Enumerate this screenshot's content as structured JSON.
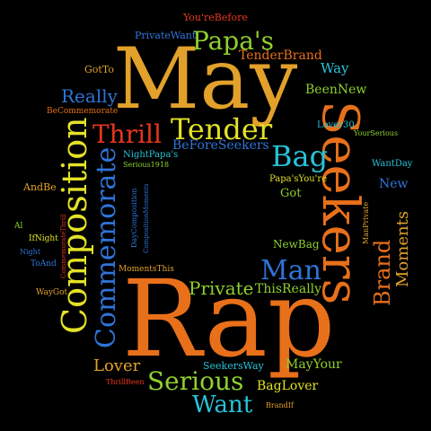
{
  "colors": {
    "background": "#000000",
    "orange": "#e8701a",
    "amber": "#e2a12a",
    "green": "#8fd12d",
    "cyan": "#27c3d8",
    "blue": "#2f74d8",
    "red": "#e8361e",
    "yellow": "#e3e227",
    "darkorange": "#c8501a"
  },
  "words": {
    "may": "May",
    "rap": "Rap",
    "seekers": "Seekers",
    "composition": "Composition",
    "commemorate": "Commemorate",
    "papas": "Papa's",
    "tender": "Tender",
    "thrill": "Thrill",
    "bag": "Bag",
    "man": "Man",
    "serious": "Serious",
    "want": "Want",
    "private": "Private",
    "lover": "Lover",
    "brand": "Brand",
    "moments": "Moments",
    "really": "Really",
    "way": "Way",
    "beennew": "BeenNew",
    "tenderbrand": "TenderBrand",
    "privatewant": "PrivateWant",
    "yourebefore": "You'reBefore",
    "gotto": "GotTo",
    "becommemorate": "BeCommemorate",
    "beforeseekers": "BeForeSeekers",
    "nightpapas": "NightPapa's",
    "serious1918": "Serious1918",
    "lover30": "Lover30",
    "yourserious": "YourSerious",
    "wantday": "WantDay",
    "papasyoure": "Papa'sYou're",
    "got": "Got",
    "new": "New",
    "andbe": "AndBe",
    "al": "Al",
    "ifnight": "IfNight",
    "night": "Night",
    "toand": "ToAnd",
    "waygot": "WayGot",
    "commemoratethrill": "CommemorateThrill",
    "daycomposition": "DayComposition",
    "compositionmoments": "CompositionMoments",
    "newbag": "NewBag",
    "manprivate": "ManPrivate",
    "momentsthis": "MomentsThis",
    "thisreally": "ThisReally",
    "seekersway": "SeekersWay",
    "mayyour": "MayYour",
    "baglover": "BagLover",
    "thrillbeen": "ThrillBeen",
    "brandif": "BrandIf"
  }
}
